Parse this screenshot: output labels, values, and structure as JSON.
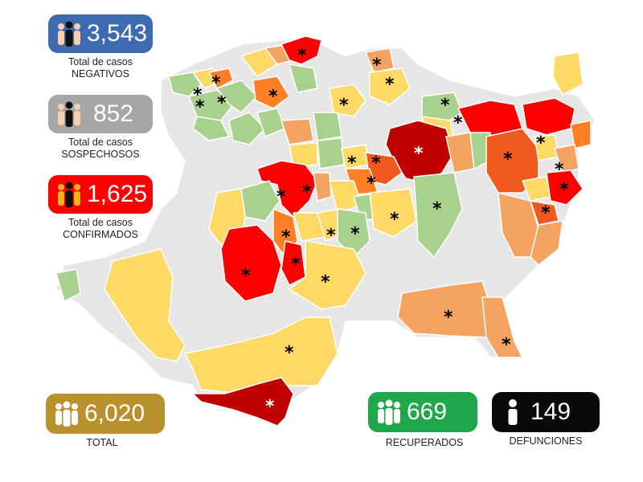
{
  "colors": {
    "negativos": "#3e6bb0",
    "sospechosos": "#a6a6a6",
    "confirmados": "#ff0000",
    "total": "#b8912c",
    "recuperados": "#1fa84b",
    "defunciones": "#0a0a0a",
    "level_none": "#e6e6e6",
    "level_green": "#a9d18e",
    "level_yellow": "#ffd966",
    "level_orange_light": "#f4a460",
    "level_orange": "#ff7f27",
    "level_orange_dark": "#f05a1e",
    "level_red": "#ff0000",
    "level_darkred": "#c00000"
  },
  "stats": {
    "negativos": {
      "value": "3,543",
      "label_line1": "Total de casos",
      "label_line2": "NEGATIVOS",
      "icon": "people-group-icon"
    },
    "sospechosos": {
      "value": "852",
      "label_line1": "Total de casos",
      "label_line2": "SOSPECHOSOS",
      "icon": "people-group-icon"
    },
    "confirmados": {
      "value": "1,625",
      "label_line1": "Total de casos",
      "label_line2": "CONFIRMADOS",
      "icon": "people-group-icon"
    },
    "total": {
      "value": "6,020",
      "label": "TOTAL",
      "icon": "people-group-icon"
    },
    "recuperados": {
      "value": "669",
      "label": "RECUPERADOS",
      "icon": "people-group-icon"
    },
    "defunciones": {
      "value": "149",
      "label": "DEFUNCIONES",
      "icon": "person-icon"
    }
  },
  "map": {
    "marker_symbol": "*"
  }
}
